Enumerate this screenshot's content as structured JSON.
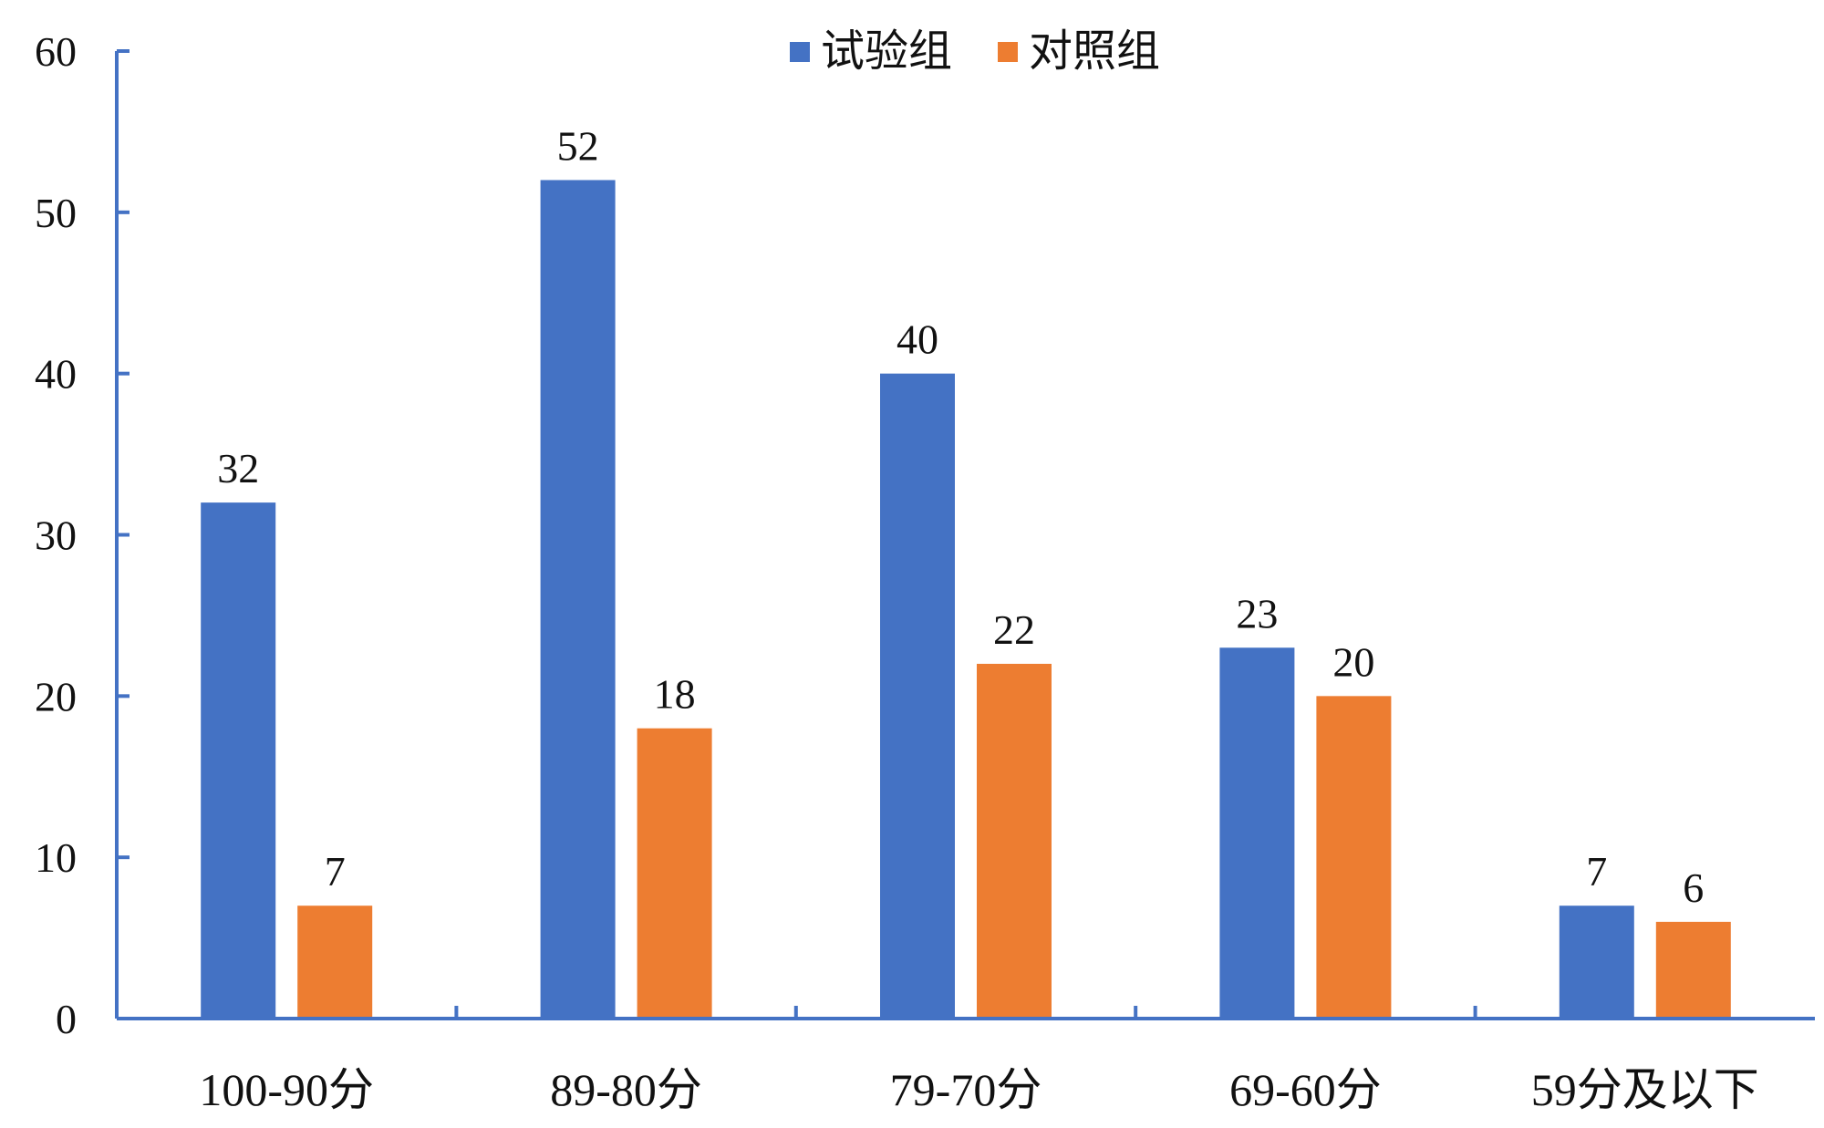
{
  "chart_data": {
    "type": "bar",
    "title": "",
    "xlabel": "",
    "ylabel": "",
    "categories": [
      "100-90分",
      "89-80分",
      "79-70分",
      "69-60分",
      "59分及以下"
    ],
    "series": [
      {
        "name": "试验组",
        "values": [
          32,
          52,
          40,
          23,
          7
        ],
        "color": "#4472C4"
      },
      {
        "name": "对照组",
        "values": [
          7,
          18,
          22,
          20,
          6
        ],
        "color": "#ED7D31"
      }
    ],
    "ylim": [
      0,
      60
    ],
    "yticks": [
      0,
      10,
      20,
      30,
      40,
      50,
      60
    ],
    "grid": false,
    "legend": "top-center",
    "data_labels": true,
    "axis_color": "#4472C4"
  }
}
